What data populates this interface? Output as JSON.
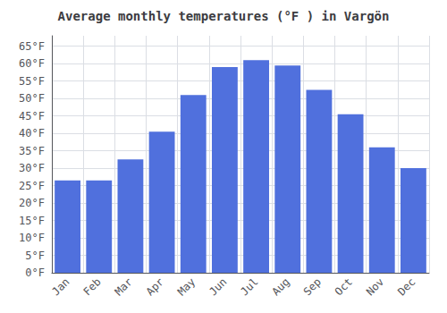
{
  "chart_data": {
    "type": "bar",
    "title": "Average monthly temperatures (°F ) in Vargön",
    "categories": [
      "Jan",
      "Feb",
      "Mar",
      "Apr",
      "May",
      "Jun",
      "Jul",
      "Aug",
      "Sep",
      "Oct",
      "Nov",
      "Dec"
    ],
    "values": [
      26.5,
      26.5,
      32.5,
      40.5,
      51.0,
      59.0,
      61.0,
      59.5,
      52.5,
      45.5,
      36.0,
      30.0
    ],
    "ylim": [
      0,
      68
    ],
    "yticks": [
      {
        "value": 0,
        "label": "0°F"
      },
      {
        "value": 5,
        "label": "5°F"
      },
      {
        "value": 10,
        "label": "10°F"
      },
      {
        "value": 15,
        "label": "15°F"
      },
      {
        "value": 20,
        "label": "20°F"
      },
      {
        "value": 25,
        "label": "25°F"
      },
      {
        "value": 30,
        "label": "30°F"
      },
      {
        "value": 35,
        "label": "35°F"
      },
      {
        "value": 40,
        "label": "40°F"
      },
      {
        "value": 45,
        "label": "45°F"
      },
      {
        "value": 50,
        "label": "50°F"
      },
      {
        "value": 55,
        "label": "55°F"
      },
      {
        "value": 60,
        "label": "60°F"
      },
      {
        "value": 65,
        "label": "65°F"
      }
    ],
    "grid": true
  }
}
